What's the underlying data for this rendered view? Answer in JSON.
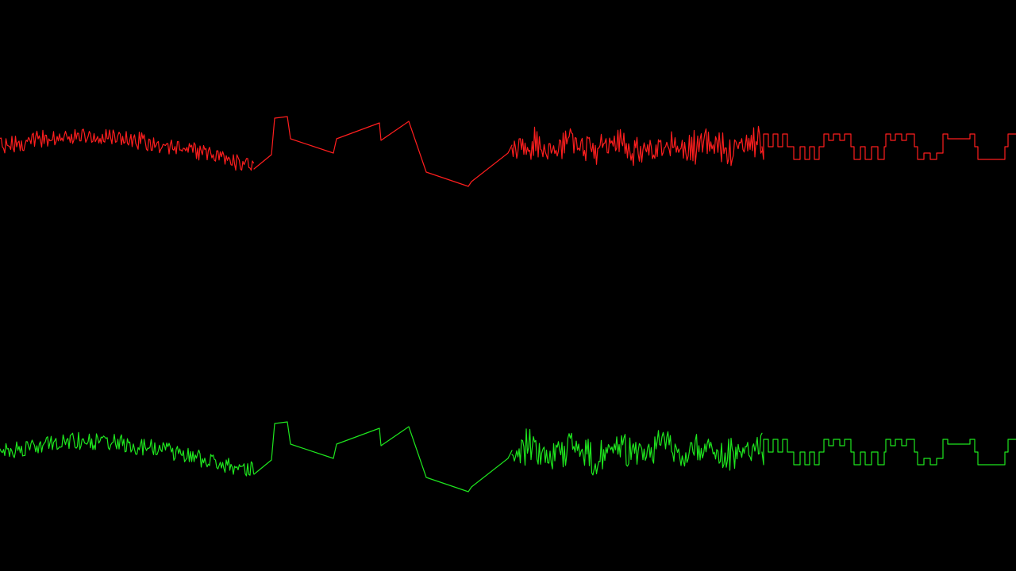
{
  "colors": {
    "background": "#000000",
    "channel_1": "#ff1e1e",
    "channel_2": "#1ee61e"
  },
  "channels": [
    {
      "id": "channel-1",
      "color": "#ff1e1e",
      "segments": [
        "noise-texture",
        "sawtooth",
        "noise-texture",
        "stepped-square"
      ]
    },
    {
      "id": "channel-2",
      "color": "#1ee61e",
      "segments": [
        "noise-texture",
        "sawtooth",
        "noise-texture",
        "stepped-square"
      ]
    }
  ]
}
